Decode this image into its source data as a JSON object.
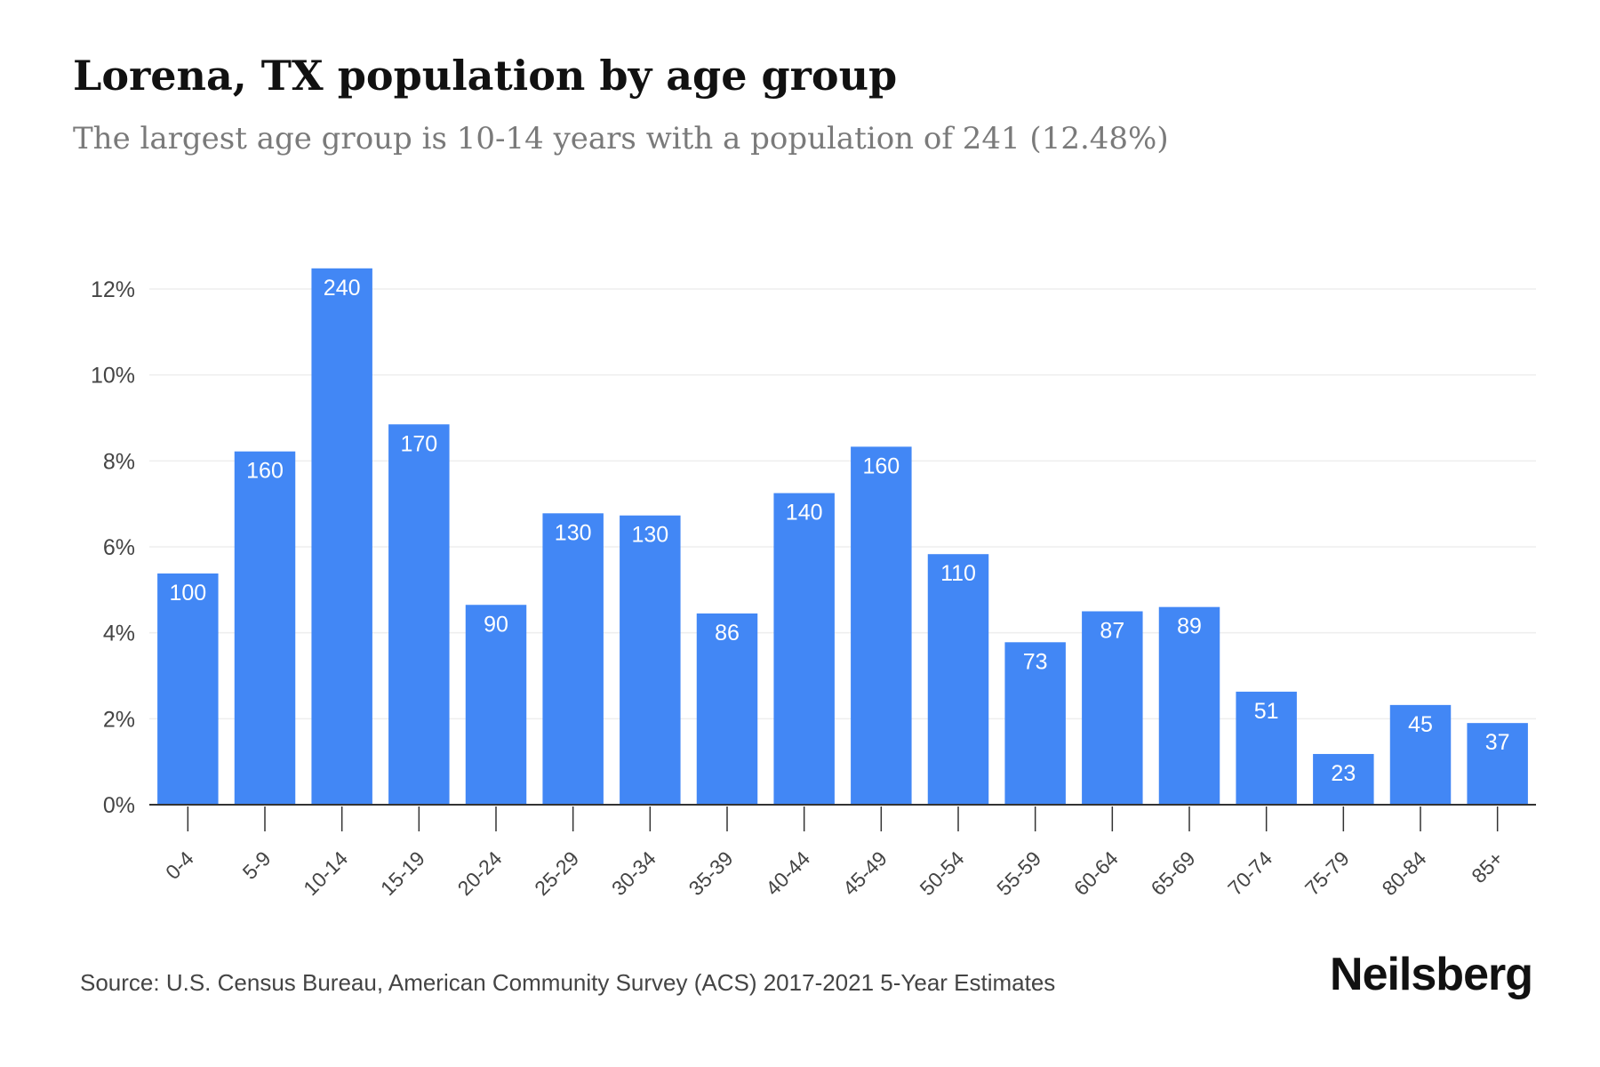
{
  "title": "Lorena, TX population by age group",
  "subtitle": "The largest age group is 10-14 years with a population of 241 (12.48%)",
  "source": "Source: U.S. Census Bureau, American Community Survey (ACS) 2017-2021 5-Year Estimates",
  "brand": "Neilsberg",
  "colors": {
    "bar": "#4287f5",
    "bar_label": "#ffffff",
    "axis": "#333333",
    "tick_text": "#444444",
    "grid": "#eeeeee"
  },
  "chart_data": {
    "type": "bar",
    "categories": [
      "0-4",
      "5-9",
      "10-14",
      "15-19",
      "20-24",
      "25-29",
      "30-34",
      "35-39",
      "40-44",
      "45-49",
      "50-54",
      "55-59",
      "60-64",
      "65-69",
      "70-74",
      "75-79",
      "80-84",
      "85+"
    ],
    "values_percent": [
      5.38,
      8.22,
      12.48,
      8.85,
      4.65,
      6.78,
      6.73,
      4.45,
      7.25,
      8.33,
      5.83,
      3.78,
      4.5,
      4.6,
      2.63,
      1.18,
      2.32,
      1.9
    ],
    "data_labels": [
      "100",
      "160",
      "240",
      "170",
      "90",
      "130",
      "130",
      "86",
      "140",
      "160",
      "110",
      "73",
      "87",
      "89",
      "51",
      "23",
      "45",
      "37"
    ],
    "y_ticks": [
      "0%",
      "2%",
      "4%",
      "6%",
      "8%",
      "10%",
      "12%"
    ],
    "ylim": [
      0,
      12.5
    ],
    "xlabel": "",
    "ylabel": "",
    "grid": true
  }
}
